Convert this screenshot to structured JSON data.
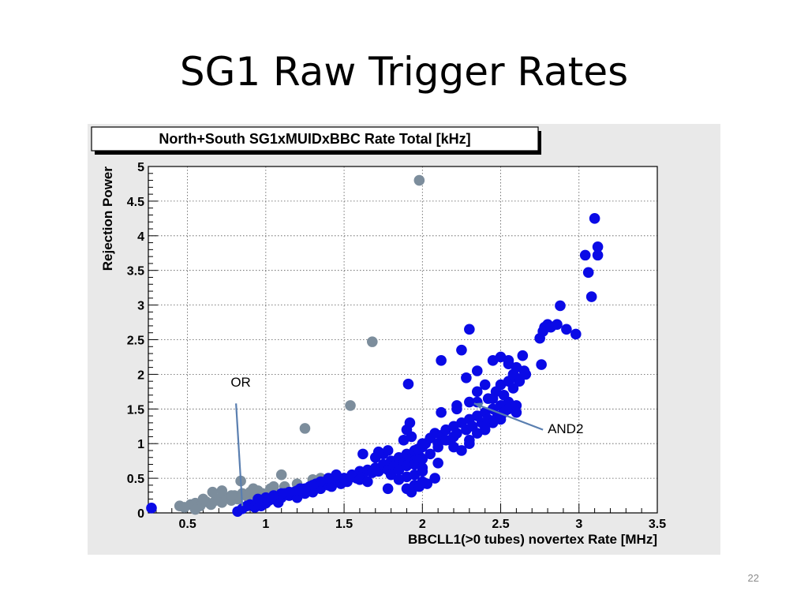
{
  "slide": {
    "title": "SG1 Raw Trigger Rates",
    "page_number": "22"
  },
  "colors": {
    "panel_background": "#e9e9e9",
    "axes_background": "#ffffff",
    "grid": "#555555",
    "series_AND2": "#0a0ae6",
    "series_OR": "#7c8d9c",
    "annotation_arrow": "#5a7fb0"
  },
  "chart_data": {
    "type": "scatter",
    "title": "North+South SG1xMUIDxBBC Rate Total [kHz]",
    "xlabel": "BBCLL1(>0 tubes) novertex Rate [MHz]",
    "ylabel": "Rejection Power",
    "xlim": [
      0.25,
      3.5
    ],
    "ylim": [
      0,
      5
    ],
    "x_ticks": [
      0.5,
      1,
      1.5,
      2,
      2.5,
      3,
      3.5
    ],
    "x_tick_labels": [
      "0.5",
      "1",
      "1.5",
      "2",
      "2.5",
      "3",
      "3.5"
    ],
    "y_ticks": [
      0,
      0.5,
      1,
      1.5,
      2,
      2.5,
      3,
      3.5,
      4,
      4.5,
      5
    ],
    "y_tick_labels": [
      "0",
      "0.5",
      "1",
      "1.5",
      "2",
      "2.5",
      "3",
      "3.5",
      "4",
      "4.5",
      "5"
    ],
    "grid": true,
    "annotations": [
      {
        "text": "OR",
        "target": [
          0.85,
          0.1
        ]
      },
      {
        "text": "AND2",
        "target": [
          2.33,
          1.58
        ]
      }
    ],
    "series": [
      {
        "key": "AND2",
        "color": "#0a0ae6",
        "x": [
          0.27,
          0.82,
          0.85,
          0.88,
          0.9,
          0.93,
          0.95,
          0.97,
          1.0,
          1.02,
          1.05,
          1.08,
          1.1,
          1.12,
          1.15,
          1.18,
          1.2,
          1.22,
          1.25,
          1.28,
          1.3,
          1.32,
          1.35,
          1.38,
          1.4,
          1.42,
          1.45,
          1.48,
          1.5,
          1.52,
          1.55,
          1.58,
          1.6,
          1.62,
          1.65,
          1.68,
          1.7,
          1.72,
          1.75,
          1.78,
          1.8,
          1.82,
          1.85,
          1.88,
          1.9,
          1.92,
          1.95,
          1.98,
          2.0,
          1.7,
          1.75,
          1.8,
          1.85,
          1.9,
          1.95,
          2.0,
          1.88,
          1.93,
          1.97,
          2.02,
          2.05,
          2.08,
          2.1,
          2.12,
          2.15,
          2.18,
          2.2,
          2.22,
          2.25,
          2.28,
          2.3,
          2.32,
          2.35,
          2.38,
          2.4,
          2.42,
          2.45,
          2.48,
          2.5,
          2.52,
          2.55,
          1.95,
          2.0,
          2.05,
          2.1,
          2.15,
          2.2,
          2.25,
          2.3,
          2.35,
          2.4,
          2.45,
          2.5,
          2.55,
          2.6,
          2.0,
          2.1,
          2.2,
          2.3,
          2.4,
          2.5,
          2.6,
          1.9,
          1.95,
          2.0,
          2.08,
          1.93,
          1.98,
          2.03,
          1.85,
          1.9,
          1.95,
          2.0,
          1.45,
          1.5,
          1.55,
          1.6,
          1.65,
          1.4,
          1.35,
          1.3,
          1.25,
          1.2,
          1.15,
          1.1,
          1.05,
          1.0,
          0.95,
          1.62,
          1.72,
          1.78,
          1.9,
          1.92,
          2.12,
          2.22,
          2.35,
          2.42,
          2.47,
          2.5,
          2.55,
          2.6,
          2.65,
          2.45,
          2.52,
          2.58,
          2.62,
          2.66,
          2.35,
          2.45,
          2.55,
          2.6,
          2.5,
          2.55,
          2.58,
          2.64,
          2.3,
          2.35,
          2.4,
          2.25,
          2.28,
          2.22,
          2.3,
          2.75,
          2.78,
          2.8,
          2.77,
          2.82,
          2.86,
          2.88,
          2.92,
          2.76,
          2.98,
          3.04,
          3.06,
          3.08,
          3.12,
          3.12,
          3.1
        ],
        "y": [
          0.07,
          0.02,
          0.06,
          0.1,
          0.12,
          0.08,
          0.15,
          0.1,
          0.14,
          0.18,
          0.2,
          0.15,
          0.22,
          0.28,
          0.25,
          0.3,
          0.22,
          0.35,
          0.28,
          0.38,
          0.3,
          0.42,
          0.35,
          0.45,
          0.4,
          0.38,
          0.48,
          0.42,
          0.5,
          0.45,
          0.55,
          0.5,
          0.6,
          0.55,
          0.62,
          0.58,
          0.65,
          0.6,
          0.7,
          0.62,
          0.75,
          0.68,
          0.8,
          0.72,
          0.85,
          0.78,
          0.9,
          0.82,
          0.95,
          0.8,
          0.85,
          0.55,
          0.62,
          0.68,
          0.75,
          1.0,
          1.05,
          1.1,
          0.92,
          1.0,
          1.08,
          1.15,
          1.0,
          1.12,
          1.2,
          1.05,
          1.25,
          1.15,
          1.3,
          1.2,
          1.35,
          1.25,
          1.4,
          1.3,
          1.45,
          1.35,
          1.5,
          1.4,
          1.55,
          1.45,
          1.6,
          0.7,
          0.78,
          0.85,
          0.95,
          1.05,
          1.1,
          0.9,
          1.0,
          1.15,
          1.2,
          1.3,
          1.4,
          1.5,
          1.55,
          0.65,
          0.72,
          0.95,
          1.05,
          1.25,
          1.35,
          1.45,
          0.35,
          0.4,
          0.45,
          0.5,
          0.3,
          0.38,
          0.42,
          0.48,
          0.52,
          0.55,
          0.6,
          0.55,
          0.5,
          0.52,
          0.48,
          0.45,
          0.5,
          0.45,
          0.4,
          0.35,
          0.32,
          0.3,
          0.28,
          0.25,
          0.22,
          0.2,
          0.85,
          0.88,
          0.9,
          1.2,
          1.3,
          1.45,
          1.5,
          1.6,
          1.65,
          1.75,
          1.85,
          1.9,
          1.95,
          2.05,
          1.65,
          1.7,
          1.8,
          1.9,
          2.0,
          2.05,
          2.2,
          2.2,
          2.1,
          2.25,
          2.15,
          2.0,
          2.27,
          2.65,
          1.75,
          1.85,
          2.35,
          1.95,
          1.55,
          1.6,
          2.52,
          2.68,
          2.72,
          2.62,
          2.68,
          2.72,
          2.99,
          2.65,
          2.14,
          2.58,
          3.72,
          3.47,
          3.12,
          3.84,
          3.72,
          4.25
        ],
        "extra_x": [
          1.91,
          2.12,
          1.78
        ],
        "extra_y": [
          1.86,
          2.2,
          0.35
        ]
      },
      {
        "key": "OR",
        "color": "#7c8d9c",
        "x": [
          0.45,
          0.48,
          0.52,
          0.55,
          0.58,
          0.62,
          0.65,
          0.68,
          0.7,
          0.72,
          0.75,
          0.78,
          0.8,
          0.82,
          0.85,
          0.88,
          0.9,
          0.93,
          0.95,
          0.98,
          1.0,
          1.03,
          1.05,
          1.08,
          1.12,
          0.6,
          0.72,
          0.84,
          0.96,
          1.05,
          1.1,
          1.2,
          1.3,
          1.35,
          1.42,
          0.55,
          0.66,
          0.78,
          0.92,
          1.25,
          1.54,
          1.68,
          1.98
        ],
        "y": [
          0.1,
          0.08,
          0.12,
          0.14,
          0.1,
          0.16,
          0.12,
          0.18,
          0.2,
          0.15,
          0.22,
          0.18,
          0.25,
          0.2,
          0.28,
          0.24,
          0.3,
          0.26,
          0.32,
          0.28,
          0.25,
          0.35,
          0.3,
          0.22,
          0.38,
          0.2,
          0.32,
          0.46,
          0.22,
          0.38,
          0.55,
          0.42,
          0.48,
          0.5,
          0.42,
          0.05,
          0.3,
          0.25,
          0.35,
          1.22,
          1.55,
          2.47,
          4.8
        ]
      }
    ]
  }
}
